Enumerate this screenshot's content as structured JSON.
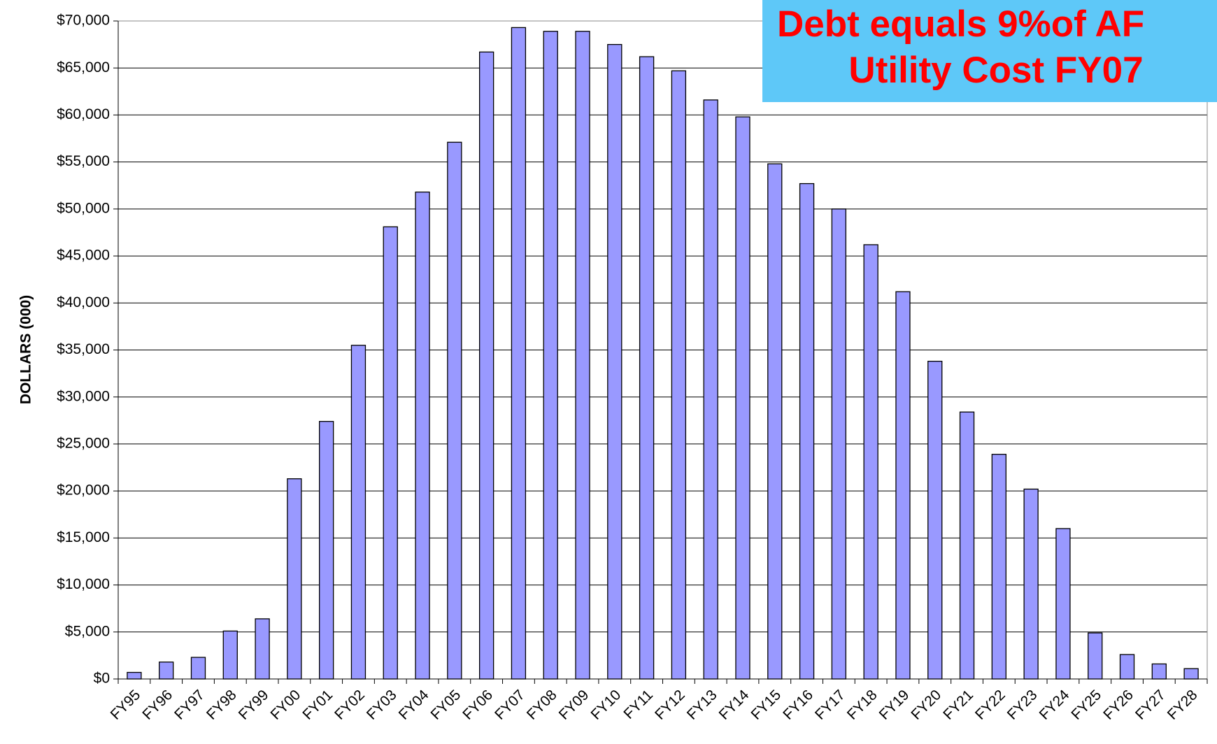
{
  "chart_data": {
    "type": "bar",
    "y_label": "DOLLARS (000)",
    "annotation": [
      "Debt equals 9%of AF",
      "Utility Cost FY07"
    ],
    "categories": [
      "FY95",
      "FY96",
      "FY97",
      "FY98",
      "FY99",
      "FY00",
      "FY01",
      "FY02",
      "FY03",
      "FY04",
      "FY05",
      "FY06",
      "FY07",
      "FY08",
      "FY09",
      "FY10",
      "FY11",
      "FY12",
      "FY13",
      "FY14",
      "FY15",
      "FY16",
      "FY17",
      "FY18",
      "FY19",
      "FY20",
      "FY21",
      "FY22",
      "FY23",
      "FY24",
      "FY25",
      "FY26",
      "FY27",
      "FY28"
    ],
    "values": [
      700,
      1800,
      2300,
      5100,
      6400,
      21300,
      27400,
      35500,
      48100,
      51800,
      57100,
      66700,
      69300,
      68900,
      68900,
      67500,
      66200,
      64700,
      61600,
      59800,
      54800,
      52700,
      50000,
      46200,
      41200,
      33800,
      28400,
      23900,
      20200,
      16000,
      4900,
      2600,
      1600,
      1100
    ],
    "color": "#9999ff",
    "ylim": [
      0,
      70000
    ],
    "yticks": [
      {
        "value": 0,
        "label": "$0"
      },
      {
        "value": 5000,
        "label": "$5,000"
      },
      {
        "value": 10000,
        "label": "$10,000"
      },
      {
        "value": 15000,
        "label": "$15,000"
      },
      {
        "value": 20000,
        "label": "$20,000"
      },
      {
        "value": 25000,
        "label": "$25,000"
      },
      {
        "value": 30000,
        "label": "$30,000"
      },
      {
        "value": 35000,
        "label": "$35,000"
      },
      {
        "value": 40000,
        "label": "$40,000"
      },
      {
        "value": 45000,
        "label": "$45,000"
      },
      {
        "value": 50000,
        "label": "$50,000"
      },
      {
        "value": 55000,
        "label": "$55,000"
      },
      {
        "value": 60000,
        "label": "$60,000"
      },
      {
        "value": 65000,
        "label": "$65,000"
      },
      {
        "value": 70000,
        "label": "$70,000"
      }
    ],
    "grid": true
  }
}
